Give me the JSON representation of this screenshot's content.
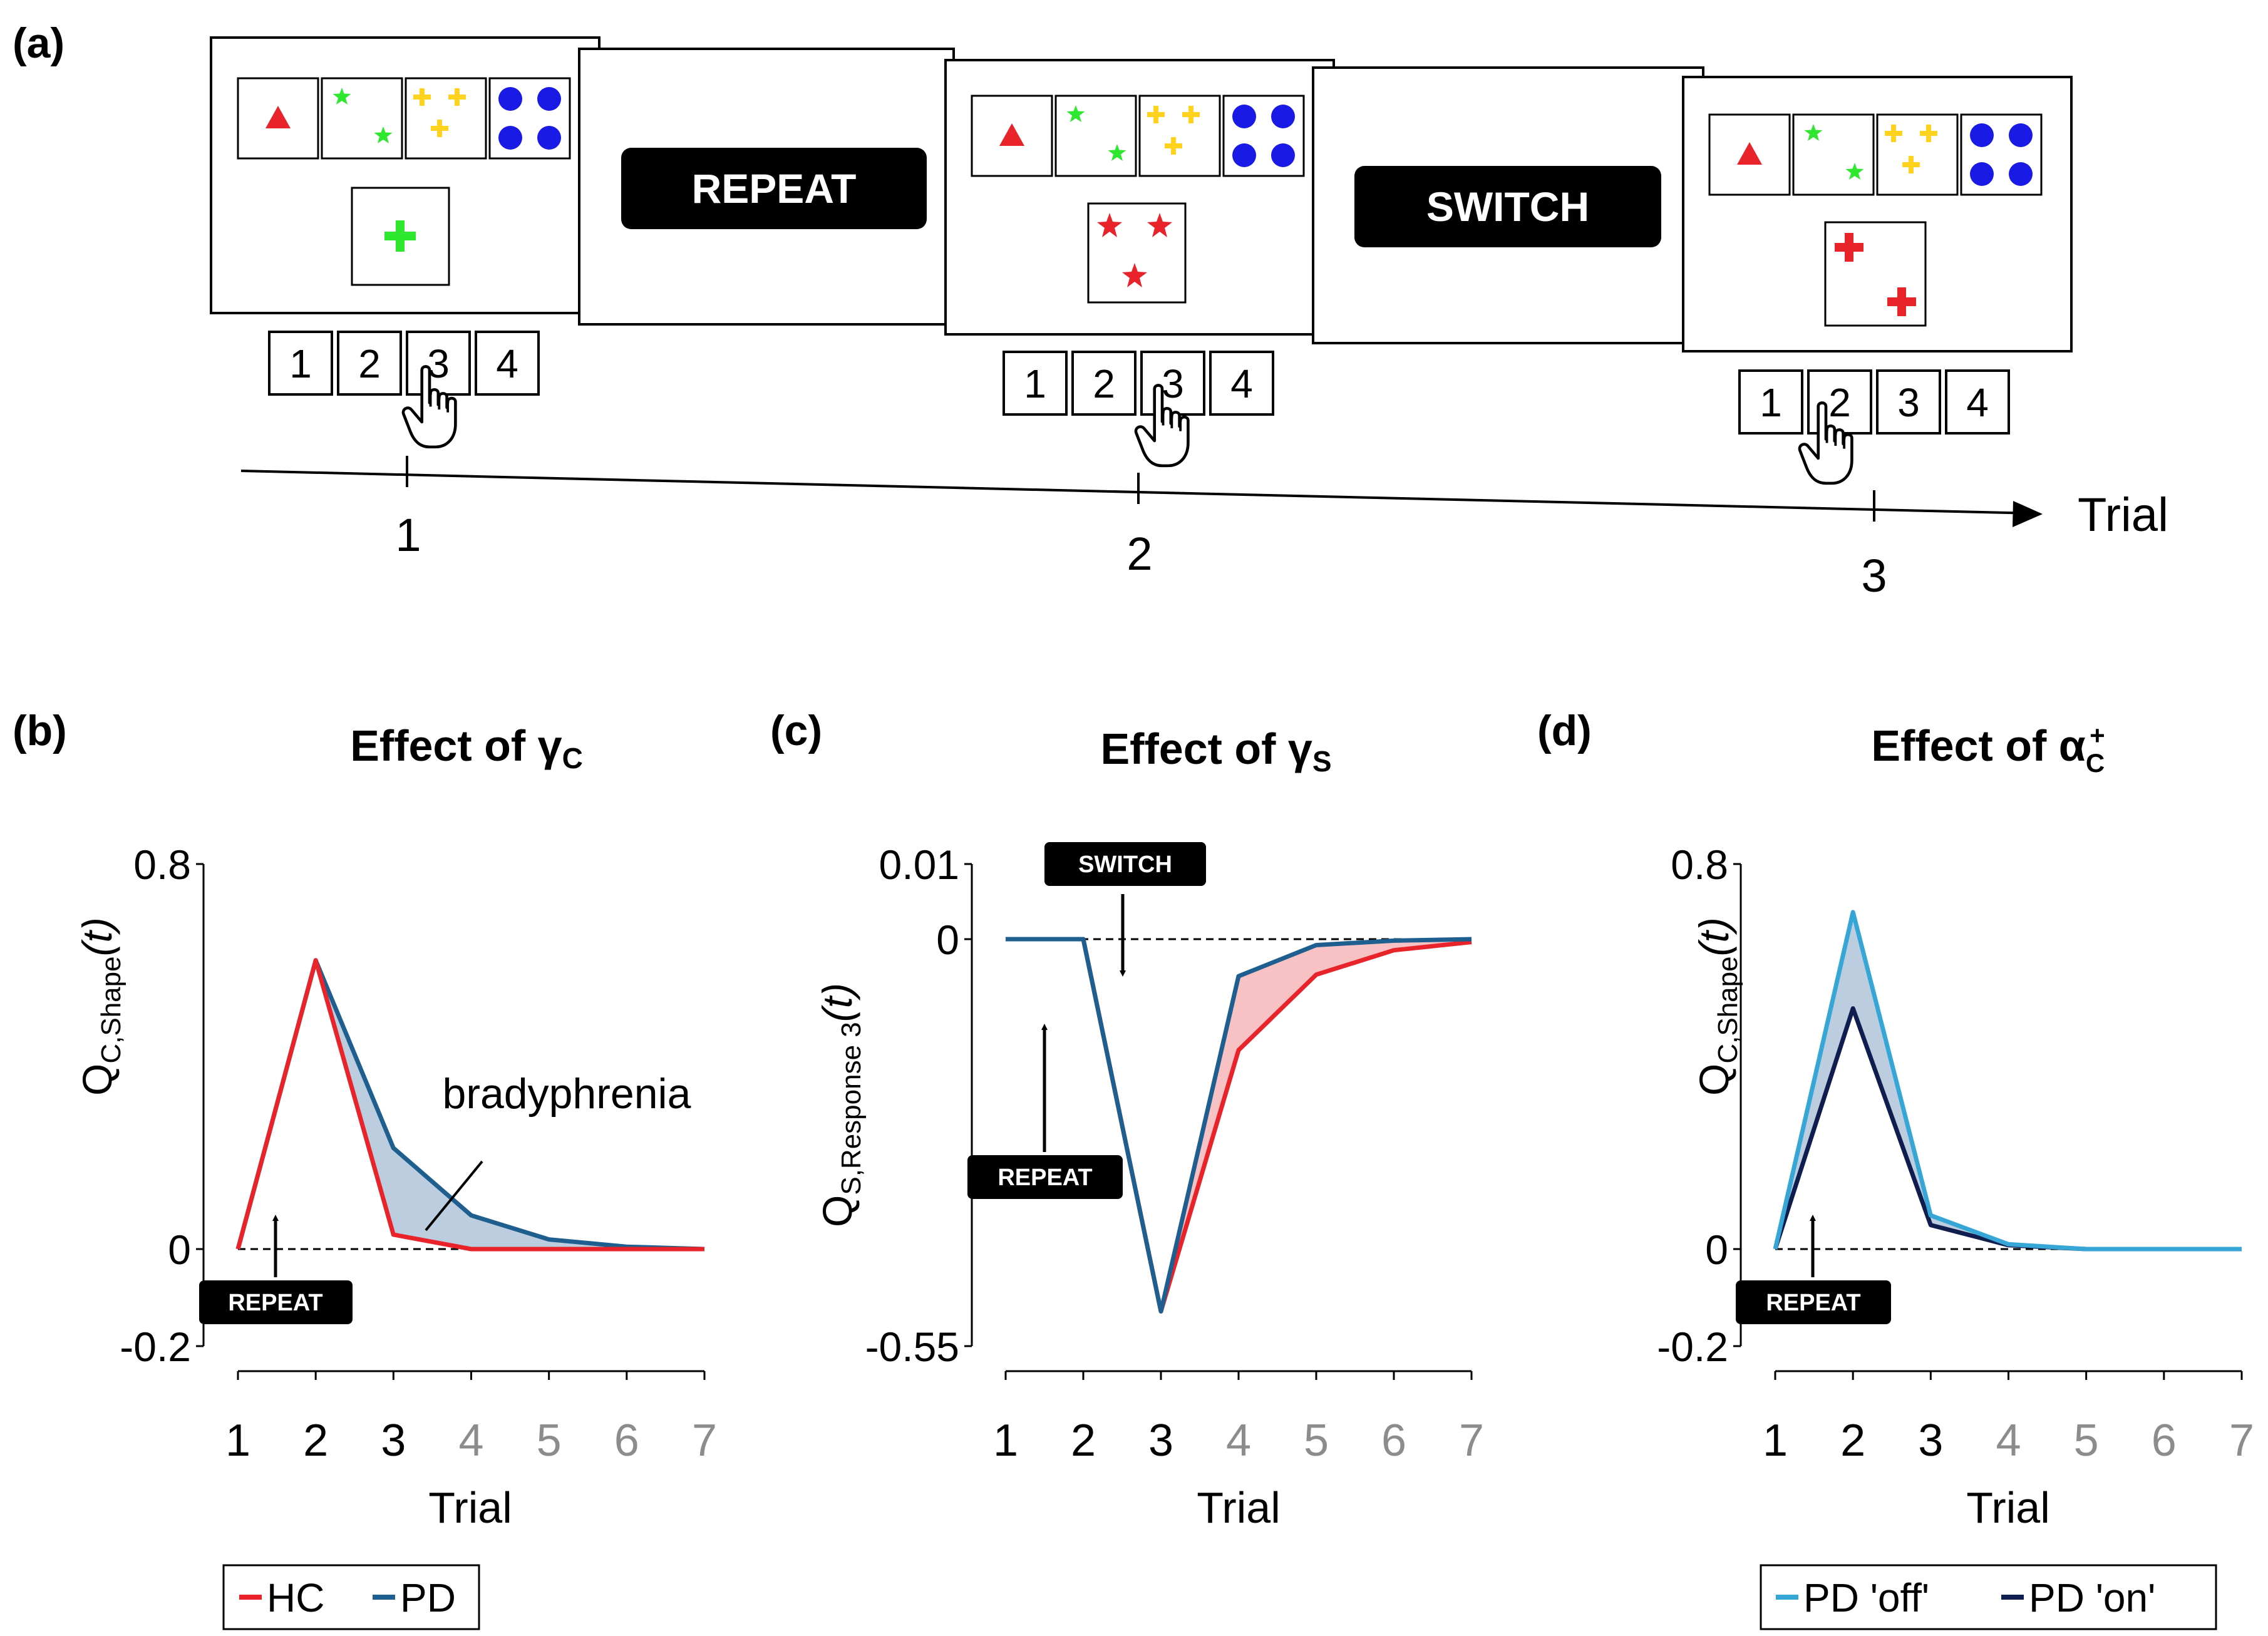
{
  "panel_labels": {
    "a": "(a)",
    "b": "(b)",
    "c": "(c)",
    "d": "(d)"
  },
  "colors": {
    "red": "#e8232a",
    "blue": "#1f5f8f",
    "light_blue": "#36a6d6",
    "navy": "#101e4f",
    "fill_blue": "#bccde0",
    "fill_red": "#f8c1c3",
    "green": "#2ee830",
    "yellow": "#ffd21e",
    "dot_blue": "#1a1ae6"
  },
  "task": {
    "cue_repeat": "REPEAT",
    "cue_switch": "SWITCH",
    "keys": [
      "1",
      "2",
      "3",
      "4"
    ],
    "timeline_label": "Trial",
    "trial_labels": [
      "1",
      "2",
      "3"
    ],
    "reference_cards": [
      "red-triangle-1",
      "green-star-2",
      "yellow-cross-3",
      "blue-circle-4"
    ],
    "target_cards": [
      "green-cross-1",
      "red-star-3",
      "red-cross-2"
    ],
    "responses": [
      3,
      3,
      2
    ]
  },
  "chart_data": [
    {
      "panel": "b",
      "type": "line",
      "title_prefix": "Effect of ",
      "title_symbol": "γ",
      "title_sub": "C",
      "ylabel_main": "Q",
      "ylabel_sub": "C,Shape",
      "ylabel_tail": "(t)",
      "xlabel": "Trial",
      "x": [
        1,
        2,
        3,
        4,
        5,
        6,
        7
      ],
      "xtick_labels": [
        "1",
        "2",
        "3",
        "4",
        "5",
        "6",
        "7"
      ],
      "ylim": [
        -0.2,
        0.8
      ],
      "yticks": [
        -0.2,
        0,
        0.8
      ],
      "ytick_labels": [
        "-0.2",
        "0",
        "0.8"
      ],
      "series": [
        {
          "name": "HC",
          "color": "#e8232a",
          "values": [
            0,
            0.6,
            0.03,
            0,
            0,
            0,
            0
          ]
        },
        {
          "name": "PD",
          "color": "#1f5f8f",
          "values": [
            0,
            0.6,
            0.21,
            0.07,
            0.02,
            0.005,
            0
          ]
        }
      ],
      "annotations": {
        "label": "bradyphrenia",
        "cue": "REPEAT"
      },
      "legend": [
        "HC",
        "PD"
      ]
    },
    {
      "panel": "c",
      "type": "line",
      "title_prefix": "Effect of ",
      "title_symbol": "γ",
      "title_sub": "S",
      "ylabel_main": "Q",
      "ylabel_sub": "S,Response 3",
      "ylabel_tail": "(t)",
      "xlabel": "Trial",
      "x": [
        1,
        2,
        3,
        4,
        5,
        6,
        7
      ],
      "xtick_labels": [
        "1",
        "2",
        "3",
        "4",
        "5",
        "6",
        "7"
      ],
      "ylim": [
        -0.55,
        0.01
      ],
      "yticks": [
        -0.55,
        0,
        0.01
      ],
      "ytick_labels": [
        "-0.55",
        "0",
        "0.01"
      ],
      "series": [
        {
          "name": "HC",
          "color": "#e8232a",
          "values": [
            0,
            0,
            -0.503,
            -0.15,
            -0.048,
            -0.015,
            -0.004
          ]
        },
        {
          "name": "PD",
          "color": "#1f5f8f",
          "values": [
            0,
            0,
            -0.503,
            -0.05,
            -0.008,
            -0.002,
            0
          ]
        }
      ],
      "annotations": {
        "cue_switch": "SWITCH",
        "cue_repeat": "REPEAT"
      }
    },
    {
      "panel": "d",
      "type": "line",
      "title_prefix": "Effect of ",
      "title_symbol": "α",
      "title_sub": "C",
      "title_sup": "+",
      "ylabel_main": "Q",
      "ylabel_sub": "C,Shape",
      "ylabel_tail": "(t)",
      "xlabel": "Trial",
      "x": [
        1,
        2,
        3,
        4,
        5,
        6,
        7
      ],
      "xtick_labels": [
        "1",
        "2",
        "3",
        "4",
        "5",
        "6",
        "7"
      ],
      "ylim": [
        -0.2,
        0.8
      ],
      "yticks": [
        -0.2,
        0,
        0.8
      ],
      "ytick_labels": [
        "-0.2",
        "0",
        "0.8"
      ],
      "series": [
        {
          "name": "PD 'off'",
          "color": "#36a6d6",
          "values": [
            0,
            0.7,
            0.07,
            0.01,
            0,
            0,
            0
          ]
        },
        {
          "name": "PD 'on'",
          "color": "#101e4f",
          "values": [
            0,
            0.5,
            0.05,
            0.008,
            0,
            0,
            0
          ]
        }
      ],
      "annotations": {
        "cue": "REPEAT"
      },
      "legend": [
        "PD 'off'",
        "PD 'on'"
      ]
    }
  ]
}
